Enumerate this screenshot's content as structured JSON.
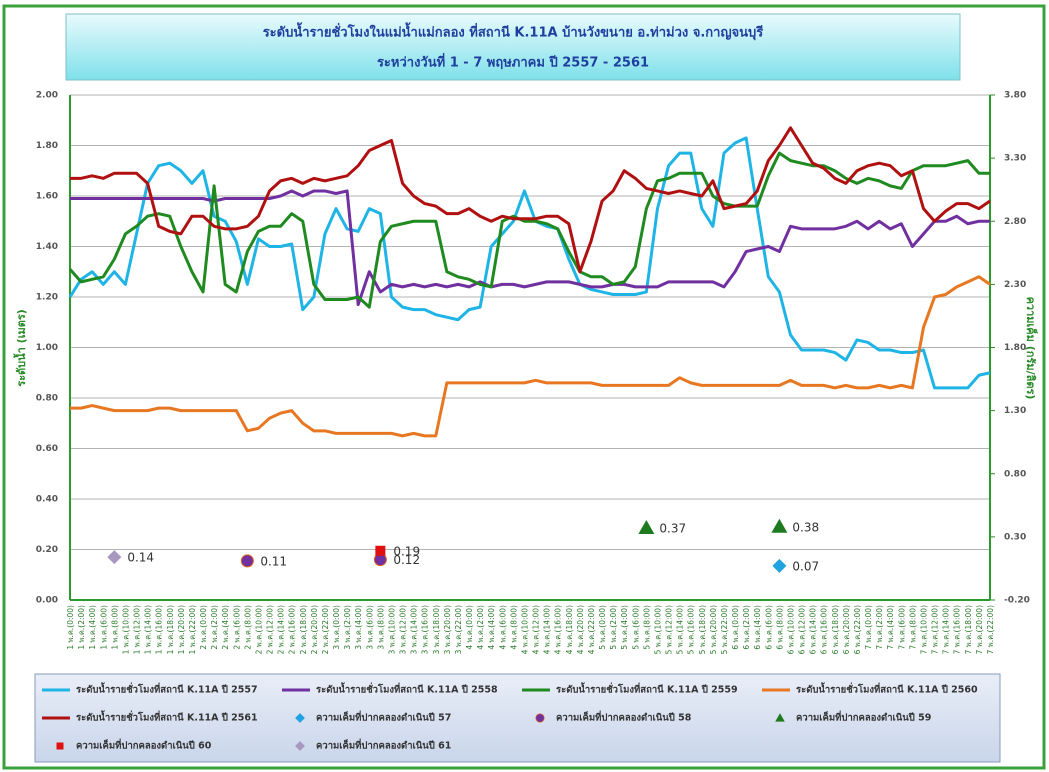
{
  "chart_data": {
    "type": "line",
    "title": "ระดับน้ำรายชั่วโมงในแม่น้ำแม่กลอง ที่สถานี K.11A บ้านวังขนาย อ.ท่าม่วง จ.กาญจนบุรี",
    "subtitle": "ระหว่างวันที่ 1 - 7 พฤษภาคม ปี 2557 - 2561",
    "y_label": "ระดับน้ำ (เมตร)",
    "y2_label": "ความเค็ม (กรัม/ลิตร)",
    "grid": true,
    "ylim": [
      0,
      2
    ],
    "yticks": [
      {
        "value": 0,
        "label": "0.00"
      },
      {
        "value": 0.2,
        "label": "0.20"
      },
      {
        "value": 0.4,
        "label": "0.40"
      },
      {
        "value": 0.6,
        "label": "0.60"
      },
      {
        "value": 0.8,
        "label": "0.80"
      },
      {
        "value": 1,
        "label": "1.00"
      },
      {
        "value": 1.2,
        "label": "1.20"
      },
      {
        "value": 1.4,
        "label": "1.40"
      },
      {
        "value": 1.6,
        "label": "1.60"
      },
      {
        "value": 1.8,
        "label": "1.80"
      },
      {
        "value": 2,
        "label": "2.00"
      }
    ],
    "y2lim": [
      -0.2,
      3.8
    ],
    "y2ticks": [
      {
        "value": -0.2,
        "label": "-0.20"
      },
      {
        "value": 0.3,
        "label": "0.30"
      },
      {
        "value": 0.8,
        "label": "0.80"
      },
      {
        "value": 1.3,
        "label": "1.30"
      },
      {
        "value": 1.8,
        "label": "1.80"
      },
      {
        "value": 2.3,
        "label": "2.30"
      },
      {
        "value": 2.8,
        "label": "2.80"
      },
      {
        "value": 3.3,
        "label": "3.30"
      },
      {
        "value": 3.8,
        "label": "3.80"
      }
    ],
    "categories": [
      "1 พ.ค.(0:00)",
      "1 พ.ค.(2:00)",
      "1 พ.ค.(4:00)",
      "1 พ.ค.(6:00)",
      "1 พ.ค.(8:00)",
      "1 พ.ค.(10:00)",
      "1 พ.ค.(12:00)",
      "1 พ.ค.(14:00)",
      "1 พ.ค.(16:00)",
      "1 พ.ค.(18:00)",
      "1 พ.ค.(20:00)",
      "1 พ.ค.(22:00)",
      "2 พ.ค.(0:00)",
      "2 พ.ค.(2:00)",
      "2 พ.ค.(4:00)",
      "2 พ.ค.(6:00)",
      "2 พ.ค.(8:00)",
      "2 พ.ค.(10:00)",
      "2 พ.ค.(12:00)",
      "2 พ.ค.(14:00)",
      "2 พ.ค.(16:00)",
      "2 พ.ค.(18:00)",
      "2 พ.ค.(20:00)",
      "2 พ.ค.(22:00)",
      "3 พ.ค.(0:00)",
      "3 พ.ค.(2:00)",
      "3 พ.ค.(4:00)",
      "3 พ.ค.(6:00)",
      "3 พ.ค.(8:00)",
      "3 พ.ค.(10:00)",
      "3 พ.ค.(12:00)",
      "3 พ.ค.(14:00)",
      "3 พ.ค.(16:00)",
      "3 พ.ค.(18:00)",
      "3 พ.ค.(20:00)",
      "3 พ.ค.(22:00)",
      "4 พ.ค.(0:00)",
      "4 พ.ค.(2:00)",
      "4 พ.ค.(4:00)",
      "4 พ.ค.(6:00)",
      "4 พ.ค.(8:00)",
      "4 พ.ค.(10:00)",
      "4 พ.ค.(12:00)",
      "4 พ.ค.(14:00)",
      "4 พ.ค.(16:00)",
      "4 พ.ค.(18:00)",
      "4 พ.ค.(20:00)",
      "4 พ.ค.(22:00)",
      "5 พ.ค.(0:00)",
      "5 พ.ค.(2:00)",
      "5 พ.ค.(4:00)",
      "5 พ.ค.(6:00)",
      "5 พ.ค.(8:00)",
      "5 พ.ค.(10:00)",
      "5 พ.ค.(12:00)",
      "5 พ.ค.(14:00)",
      "5 พ.ค.(16:00)",
      "5 พ.ค.(18:00)",
      "5 พ.ค.(20:00)",
      "5 พ.ค.(22:00)",
      "6 พ.ค.(0:00)",
      "6 พ.ค.(2:00)",
      "6 พ.ค.(4:00)",
      "6 พ.ค.(6:00)",
      "6 พ.ค.(8:00)",
      "6 พ.ค.(10:00)",
      "6 พ.ค.(12:00)",
      "6 พ.ค.(14:00)",
      "6 พ.ค.(16:00)",
      "6 พ.ค.(18:00)",
      "6 พ.ค.(20:00)",
      "6 พ.ค.(22:00)",
      "7 พ.ค.(0:00)",
      "7 พ.ค.(2:00)",
      "7 พ.ค.(4:00)",
      "7 พ.ค.(6:00)",
      "7 พ.ค.(8:00)",
      "7 พ.ค.(10:00)",
      "7 พ.ค.(12:00)",
      "7 พ.ค.(14:00)",
      "7 พ.ค.(16:00)",
      "7 พ.ค.(18:00)",
      "7 พ.ค.(20:00)",
      "7 พ.ค.(22:00)"
    ],
    "series": [
      {
        "name": "ระดับน้ำรายชั่วโมงที่สถานี K.11A ปี 2557",
        "color": "#1fb4e6",
        "values": [
          1.2,
          1.27,
          1.3,
          1.25,
          1.3,
          1.25,
          1.45,
          1.65,
          1.72,
          1.73,
          1.7,
          1.65,
          1.7,
          1.52,
          1.5,
          1.42,
          1.25,
          1.43,
          1.4,
          1.4,
          1.41,
          1.15,
          1.2,
          1.45,
          1.55,
          1.47,
          1.46,
          1.55,
          1.53,
          1.2,
          1.16,
          1.15,
          1.15,
          1.13,
          1.12,
          1.11,
          1.15,
          1.16,
          1.4,
          1.45,
          1.5,
          1.62,
          1.5,
          1.48,
          1.47,
          1.35,
          1.25,
          1.23,
          1.22,
          1.21,
          1.21,
          1.21,
          1.22,
          1.55,
          1.72,
          1.77,
          1.77,
          1.55,
          1.48,
          1.77,
          1.81,
          1.83,
          1.55,
          1.28,
          1.22,
          1.05,
          0.99,
          0.99,
          0.99,
          0.98,
          0.95,
          1.03,
          1.02,
          0.99,
          0.99,
          0.98,
          0.98,
          0.99,
          0.84,
          0.84,
          0.84,
          0.84,
          0.89,
          0.9
        ]
      },
      {
        "name": "ระดับน้ำรายชั่วโมงที่สถานี K.11A ปี 2558",
        "color": "#7030a0",
        "values": [
          1.59,
          1.59,
          1.59,
          1.59,
          1.59,
          1.59,
          1.59,
          1.59,
          1.59,
          1.59,
          1.59,
          1.59,
          1.59,
          1.58,
          1.59,
          1.59,
          1.59,
          1.59,
          1.59,
          1.6,
          1.62,
          1.6,
          1.62,
          1.62,
          1.61,
          1.62,
          1.17,
          1.3,
          1.22,
          1.25,
          1.24,
          1.25,
          1.24,
          1.25,
          1.24,
          1.25,
          1.24,
          1.26,
          1.24,
          1.25,
          1.25,
          1.24,
          1.25,
          1.26,
          1.26,
          1.26,
          1.25,
          1.24,
          1.24,
          1.25,
          1.25,
          1.24,
          1.24,
          1.24,
          1.26,
          1.26,
          1.26,
          1.26,
          1.26,
          1.24,
          1.3,
          1.38,
          1.39,
          1.4,
          1.38,
          1.48,
          1.47,
          1.47,
          1.47,
          1.47,
          1.48,
          1.5,
          1.47,
          1.5,
          1.47,
          1.49,
          1.4,
          1.45,
          1.5,
          1.5,
          1.52,
          1.49,
          1.5,
          1.5
        ]
      },
      {
        "name": "ระดับน้ำรายชั่วโมงที่สถานี K.11A ปี 2559",
        "color": "#1f8a1f",
        "values": [
          1.31,
          1.26,
          1.27,
          1.28,
          1.35,
          1.45,
          1.48,
          1.52,
          1.53,
          1.52,
          1.4,
          1.3,
          1.22,
          1.64,
          1.25,
          1.22,
          1.38,
          1.46,
          1.48,
          1.48,
          1.53,
          1.5,
          1.25,
          1.19,
          1.19,
          1.19,
          1.2,
          1.16,
          1.42,
          1.48,
          1.49,
          1.5,
          1.5,
          1.5,
          1.3,
          1.28,
          1.27,
          1.25,
          1.24,
          1.5,
          1.52,
          1.5,
          1.5,
          1.49,
          1.47,
          1.38,
          1.3,
          1.28,
          1.28,
          1.25,
          1.26,
          1.32,
          1.55,
          1.66,
          1.67,
          1.69,
          1.69,
          1.69,
          1.6,
          1.57,
          1.56,
          1.56,
          1.56,
          1.68,
          1.77,
          1.74,
          1.73,
          1.72,
          1.72,
          1.7,
          1.67,
          1.65,
          1.67,
          1.66,
          1.64,
          1.63,
          1.7,
          1.72,
          1.72,
          1.72,
          1.73,
          1.74,
          1.69,
          1.69
        ]
      },
      {
        "name": "ระดับน้ำรายชั่วโมงที่สถานี K.11A ปี 2560",
        "color": "#e87722",
        "values": [
          0.76,
          0.76,
          0.77,
          0.76,
          0.75,
          0.75,
          0.75,
          0.75,
          0.76,
          0.76,
          0.75,
          0.75,
          0.75,
          0.75,
          0.75,
          0.75,
          0.67,
          0.68,
          0.72,
          0.74,
          0.75,
          0.7,
          0.67,
          0.67,
          0.66,
          0.66,
          0.66,
          0.66,
          0.66,
          0.66,
          0.65,
          0.66,
          0.65,
          0.65,
          0.86,
          0.86,
          0.86,
          0.86,
          0.86,
          0.86,
          0.86,
          0.86,
          0.87,
          0.86,
          0.86,
          0.86,
          0.86,
          0.86,
          0.85,
          0.85,
          0.85,
          0.85,
          0.85,
          0.85,
          0.85,
          0.88,
          0.86,
          0.85,
          0.85,
          0.85,
          0.85,
          0.85,
          0.85,
          0.85,
          0.85,
          0.87,
          0.85,
          0.85,
          0.85,
          0.84,
          0.85,
          0.84,
          0.84,
          0.85,
          0.84,
          0.85,
          0.84,
          1.08,
          1.2,
          1.21,
          1.24,
          1.26,
          1.28,
          1.25
        ]
      },
      {
        "name": "ระดับน้ำรายชั่วโมงที่สถานี K.11A ปี 2561",
        "color": "#b01010",
        "values": [
          1.67,
          1.67,
          1.68,
          1.67,
          1.69,
          1.69,
          1.69,
          1.65,
          1.48,
          1.46,
          1.45,
          1.52,
          1.52,
          1.48,
          1.47,
          1.47,
          1.48,
          1.52,
          1.62,
          1.66,
          1.67,
          1.65,
          1.67,
          1.66,
          1.67,
          1.68,
          1.72,
          1.78,
          1.8,
          1.82,
          1.65,
          1.6,
          1.57,
          1.56,
          1.53,
          1.53,
          1.55,
          1.52,
          1.5,
          1.52,
          1.51,
          1.51,
          1.51,
          1.52,
          1.52,
          1.49,
          1.3,
          1.42,
          1.58,
          1.62,
          1.7,
          1.67,
          1.63,
          1.62,
          1.61,
          1.62,
          1.61,
          1.6,
          1.66,
          1.55,
          1.56,
          1.57,
          1.62,
          1.74,
          1.8,
          1.87,
          1.8,
          1.73,
          1.71,
          1.67,
          1.65,
          1.7,
          1.72,
          1.73,
          1.72,
          1.68,
          1.7,
          1.55,
          1.5,
          1.54,
          1.57,
          1.57,
          1.55,
          1.58
        ]
      },
      {
        "name": "ความเค็มที่ปากคลองดำเนินปี 57",
        "type": "scatter",
        "axis": "y2",
        "marker": "diamond",
        "color": "#1fa3e0",
        "values": [
          null,
          null,
          null,
          null,
          null,
          null,
          null,
          null,
          null,
          null,
          null,
          null,
          null,
          null,
          null,
          null,
          null,
          null,
          null,
          null,
          null,
          null,
          null,
          null,
          null,
          null,
          null,
          null,
          null,
          null,
          null,
          null,
          null,
          null,
          null,
          null,
          null,
          null,
          null,
          null,
          null,
          null,
          null,
          null,
          null,
          null,
          null,
          null,
          null,
          null,
          null,
          null,
          null,
          null,
          null,
          null,
          null,
          null,
          null,
          null,
          null,
          null,
          null,
          null,
          0.07,
          null,
          null,
          null,
          null,
          null,
          null,
          null,
          null,
          null,
          null,
          null,
          null,
          null,
          null,
          null,
          null,
          null,
          null,
          null
        ]
      },
      {
        "name": "ความเค็มที่ปากคลองดำเนินปี 58",
        "type": "scatter",
        "axis": "y2",
        "marker": "circle",
        "color": "#7030a0",
        "values": [
          null,
          null,
          null,
          null,
          null,
          null,
          null,
          null,
          null,
          null,
          null,
          null,
          null,
          null,
          null,
          null,
          0.11,
          null,
          null,
          null,
          null,
          null,
          null,
          null,
          null,
          null,
          null,
          null,
          0.12,
          null,
          null,
          null,
          null,
          null,
          null,
          null,
          null,
          null,
          null,
          null,
          null,
          null,
          null,
          null,
          null,
          null,
          null,
          null,
          null,
          null,
          null,
          null,
          null,
          null,
          null,
          null,
          null,
          null,
          null,
          null,
          null,
          null,
          null,
          null,
          null,
          null,
          null,
          null,
          null,
          null,
          null,
          null,
          null,
          null,
          null,
          null,
          null,
          null,
          null,
          null,
          null,
          null,
          null,
          null
        ]
      },
      {
        "name": "ความเค็มที่ปากคลองดำเนินปี 59",
        "type": "scatter",
        "axis": "y2",
        "marker": "triangle",
        "color": "#1e7a1e",
        "values": [
          null,
          null,
          null,
          null,
          null,
          null,
          null,
          null,
          null,
          null,
          null,
          null,
          null,
          null,
          null,
          null,
          null,
          null,
          null,
          null,
          null,
          null,
          null,
          null,
          null,
          null,
          null,
          null,
          null,
          null,
          null,
          null,
          null,
          null,
          null,
          null,
          null,
          null,
          null,
          null,
          null,
          null,
          null,
          null,
          null,
          null,
          null,
          null,
          null,
          null,
          null,
          null,
          0.37,
          null,
          null,
          null,
          null,
          null,
          null,
          null,
          null,
          null,
          null,
          null,
          0.38,
          null,
          null,
          null,
          null,
          null,
          null,
          null,
          null,
          null,
          null,
          null,
          null,
          null,
          null,
          null,
          null,
          null,
          null,
          null
        ]
      },
      {
        "name": "ความเค็มที่ปากคลองดำเนินปี 60",
        "type": "scatter",
        "axis": "y2",
        "marker": "square",
        "color": "#e01010",
        "values": [
          null,
          null,
          null,
          null,
          null,
          null,
          null,
          null,
          null,
          null,
          null,
          null,
          null,
          null,
          null,
          null,
          null,
          null,
          null,
          null,
          null,
          null,
          null,
          null,
          null,
          null,
          null,
          null,
          0.19,
          null,
          null,
          null,
          null,
          null,
          null,
          null,
          null,
          null,
          null,
          null,
          null,
          null,
          null,
          null,
          null,
          null,
          null,
          null,
          null,
          null,
          null,
          null,
          null,
          null,
          null,
          null,
          null,
          null,
          null,
          null,
          null,
          null,
          null,
          null,
          null,
          null,
          null,
          null,
          null,
          null,
          null,
          null,
          null,
          null,
          null,
          null,
          null,
          null,
          null,
          null,
          null,
          null,
          null,
          null
        ]
      },
      {
        "name": "ความเค็มที่ปากคลองดำเนินปี 61",
        "type": "scatter",
        "axis": "y2",
        "marker": "diamond",
        "color": "#a898c0",
        "values": [
          null,
          null,
          null,
          null,
          0.14,
          null,
          null,
          null,
          null,
          null,
          null,
          null,
          null,
          null,
          null,
          null,
          null,
          null,
          null,
          null,
          null,
          null,
          null,
          null,
          null,
          null,
          null,
          null,
          null,
          null,
          null,
          null,
          null,
          null,
          null,
          null,
          null,
          null,
          null,
          null,
          null,
          null,
          null,
          null,
          null,
          null,
          null,
          null,
          null,
          null,
          null,
          null,
          null,
          null,
          null,
          null,
          null,
          null,
          null,
          null,
          null,
          null,
          null,
          null,
          null,
          null,
          null,
          null,
          null,
          null,
          null,
          null,
          null,
          null,
          null,
          null,
          null,
          null,
          null,
          null,
          null,
          null,
          null,
          null
        ]
      }
    ]
  }
}
